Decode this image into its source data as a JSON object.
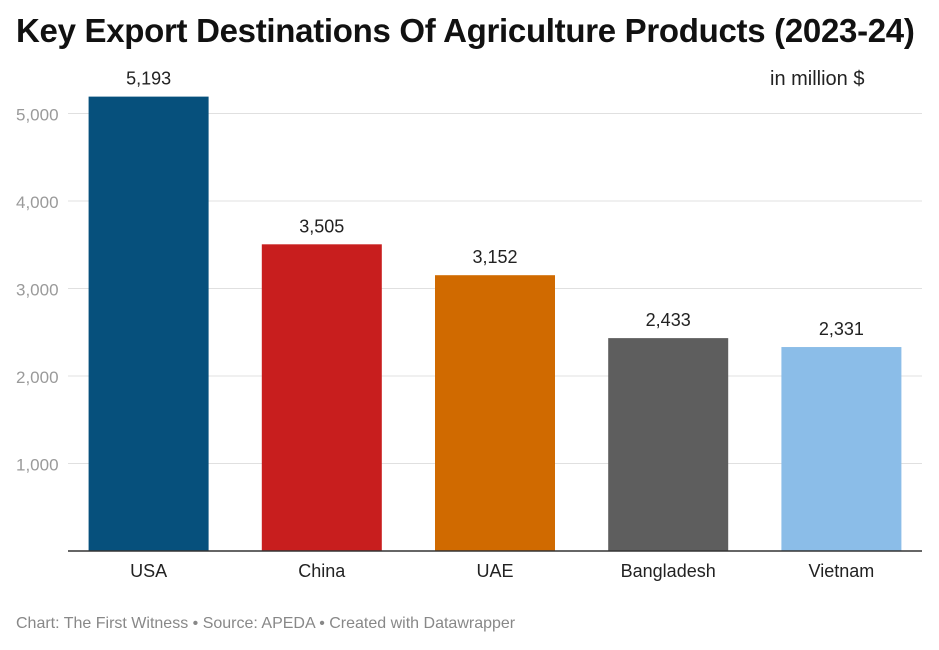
{
  "title": "Key Export Destinations Of Agriculture Products (2023-24)",
  "unit_label": "in million $",
  "footer": {
    "chart_credit": "Chart: The First Witness",
    "source": "• Source: APEDA",
    "created_with": "• Created with Datawrapper"
  },
  "chart_data": {
    "type": "bar",
    "title": "Key Export Destinations Of Agriculture Products (2023-24)",
    "categories": [
      "USA",
      "China",
      "UAE",
      "Bangladesh",
      "Vietnam"
    ],
    "values": [
      5193,
      3505,
      3152,
      2433,
      2331
    ],
    "value_labels": [
      "5,193",
      "3,505",
      "3,152",
      "2,433",
      "2,331"
    ],
    "colors": [
      "#06507c",
      "#c81e1e",
      "#d06a00",
      "#5e5e5e",
      "#8bbde8"
    ],
    "ylim": [
      0,
      5500
    ],
    "yticks": [
      1000,
      2000,
      3000,
      4000,
      5000
    ],
    "ytick_labels": [
      "1,000",
      "2,000",
      "3,000",
      "4,000",
      "5,000"
    ],
    "grid": true,
    "xlabel": "",
    "ylabel": ""
  }
}
